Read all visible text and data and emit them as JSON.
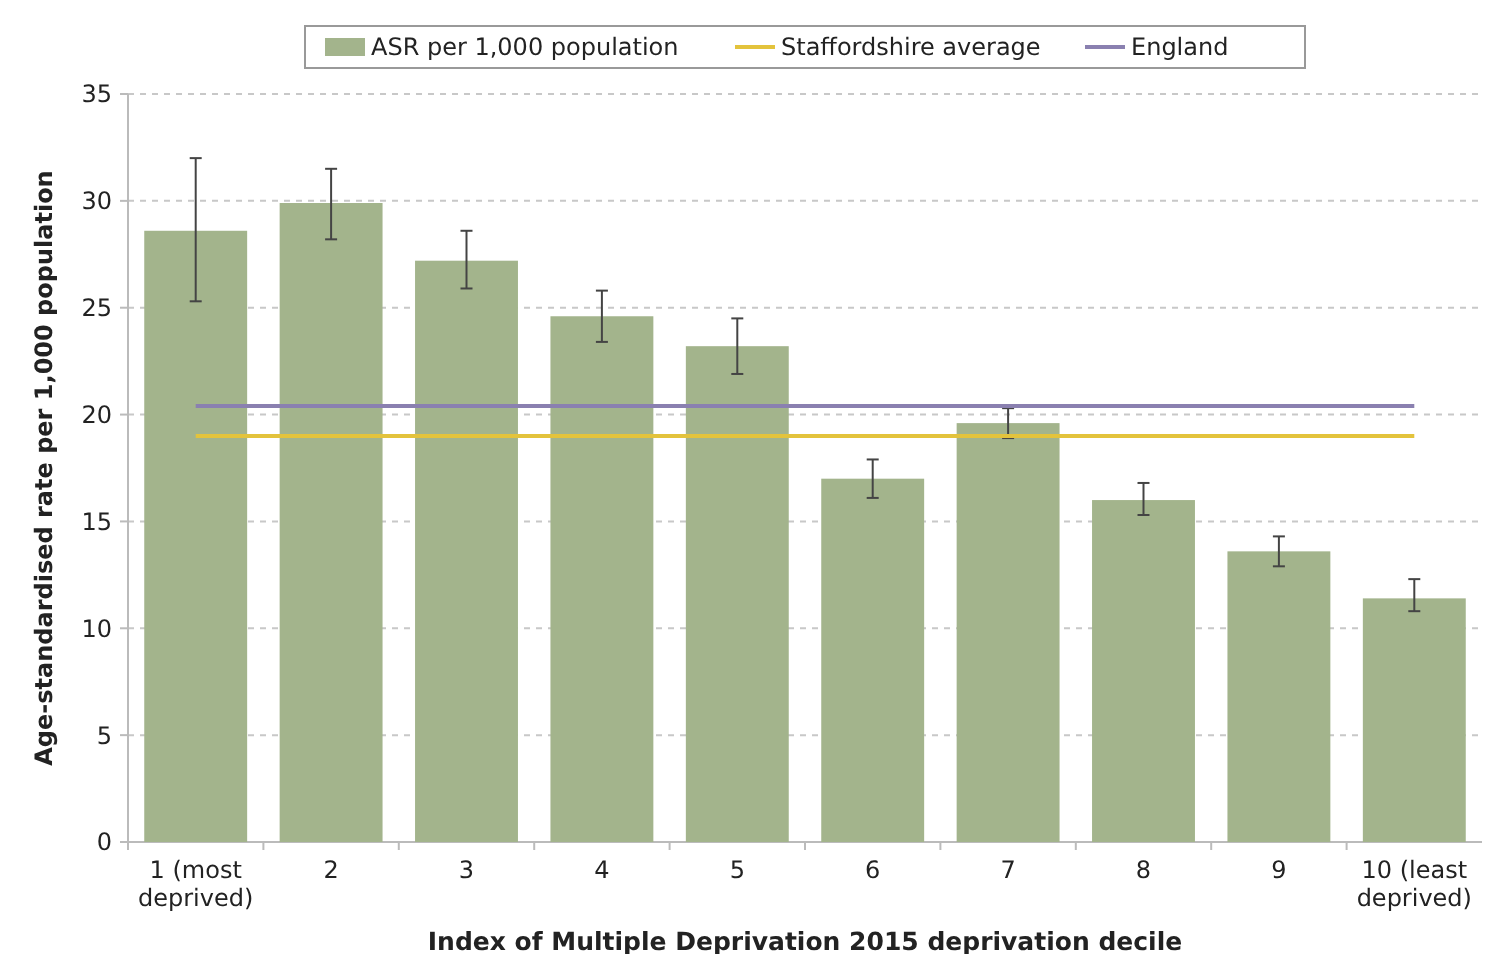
{
  "chart_data": {
    "type": "bar",
    "xlabel": "Index of Multiple Deprivation 2015 deprivation decile",
    "ylabel": "Age-standardised rate per 1,000 population",
    "categories": [
      "1 (most\ndeprived)",
      "2",
      "3",
      "4",
      "5",
      "6",
      "7",
      "8",
      "9",
      "10 (least\ndeprived)"
    ],
    "series": [
      {
        "name": "ASR per 1,000 population",
        "color": "#a3b48c",
        "values": [
          28.6,
          29.9,
          27.2,
          24.6,
          23.2,
          17.0,
          19.6,
          16.0,
          13.6,
          11.4
        ],
        "errors": [
          [
            25.3,
            32.0
          ],
          [
            28.2,
            31.5
          ],
          [
            25.9,
            28.6
          ],
          [
            23.4,
            25.8
          ],
          [
            21.9,
            24.5
          ],
          [
            16.1,
            17.9
          ],
          [
            18.9,
            20.3
          ],
          [
            15.3,
            16.8
          ],
          [
            12.9,
            14.3
          ],
          [
            10.8,
            12.3
          ]
        ]
      },
      {
        "name": "Staffordshire average",
        "type": "line",
        "color": "#e3c33c",
        "values": [
          19.0,
          19.0,
          19.0,
          19.0,
          19.0,
          19.0,
          19.0,
          19.0,
          19.0,
          19.0
        ]
      },
      {
        "name": "England",
        "type": "line",
        "color": "#8a80b0",
        "values": [
          20.4,
          20.4,
          20.4,
          20.4,
          20.4,
          20.4,
          20.4,
          20.4,
          20.4,
          20.4
        ]
      }
    ],
    "ylim": [
      0,
      35
    ],
    "yticks": [
      0,
      5,
      10,
      15,
      20,
      25,
      30,
      35
    ],
    "grid": "y",
    "legend": "top"
  }
}
